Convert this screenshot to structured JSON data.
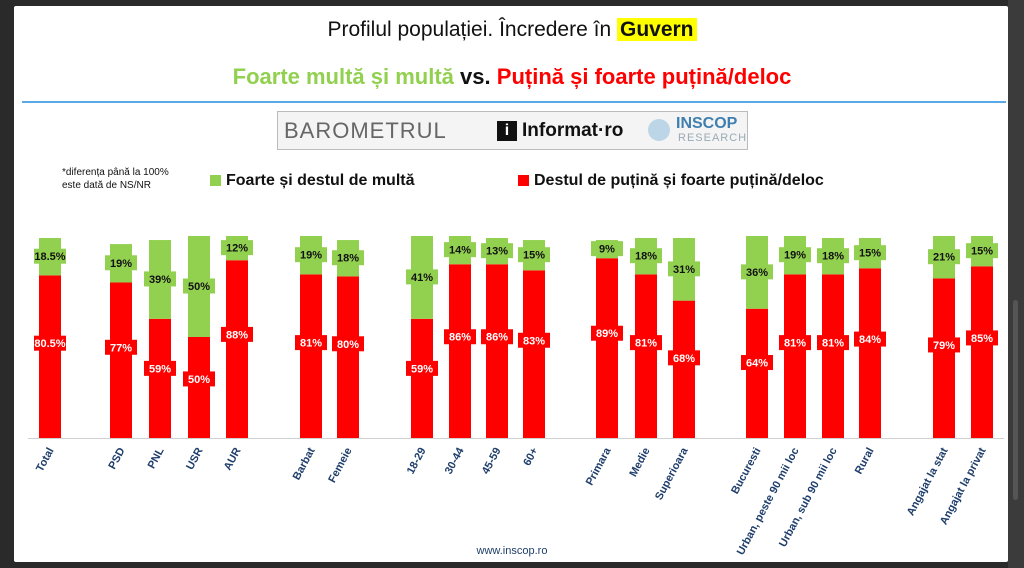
{
  "title": {
    "prefix": "Profilul populației. Încredere în",
    "highlight": "Guvern"
  },
  "subtitle": {
    "green": "Foarte multă și multă",
    "mid": "vs.",
    "red": "Puțină și foarte puțină/deloc"
  },
  "logo": {
    "barometru": "BAROMETRUL",
    "informat": "Informat·ro",
    "inscop": "INSCOP",
    "research": "RESEARCH"
  },
  "note": {
    "line1": "*diferența până la 100%",
    "line2": "este dată de NS/NR"
  },
  "colors": {
    "green": "#92d050",
    "red": "#ff0000",
    "axis_text": "#1f3e6b"
  },
  "footer": "www.inscop.ro",
  "chart_data": {
    "type": "bar",
    "stacked": true,
    "ylim": [
      0,
      100
    ],
    "categories": [
      "Total",
      "PSD",
      "PNL",
      "USR",
      "AUR",
      "Barbat",
      "Femeie",
      "18-29",
      "30-44",
      "45-59",
      "60+",
      "Primara",
      "Medie",
      "Superioara",
      "Bucuresti",
      "Urban, peste 90 mii loc",
      "Urban, sub 90 mii loc",
      "Rural",
      "Angajat la stat",
      "Angajat la privat"
    ],
    "series": [
      {
        "name": "Destul de puțină și foarte puțină/deloc",
        "color": "#ff0000",
        "values": [
          80.5,
          77,
          59,
          50,
          88,
          81,
          80,
          59,
          86,
          86,
          83,
          89,
          81,
          68,
          64,
          81,
          81,
          84,
          79,
          85
        ],
        "labels": [
          "80.5%",
          "77%",
          "59%",
          "50%",
          "88%",
          "81%",
          "80%",
          "59%",
          "86%",
          "86%",
          "83%",
          "89%",
          "81%",
          "68%",
          "64%",
          "81%",
          "81%",
          "84%",
          "79%",
          "85%"
        ]
      },
      {
        "name": "Foarte și destul de multă",
        "color": "#92d050",
        "values": [
          18.5,
          19,
          39,
          50,
          12,
          19,
          18,
          41,
          14,
          13,
          15,
          9,
          18,
          31,
          36,
          19,
          18,
          15,
          21,
          15
        ],
        "labels": [
          "18.5%",
          "19%",
          "39%",
          "50%",
          "12%",
          "19%",
          "18%",
          "41%",
          "14%",
          "13%",
          "15%",
          "9%",
          "18%",
          "31%",
          "36%",
          "19%",
          "18%",
          "15%",
          "21%",
          "15%"
        ]
      }
    ],
    "legend": "top"
  }
}
